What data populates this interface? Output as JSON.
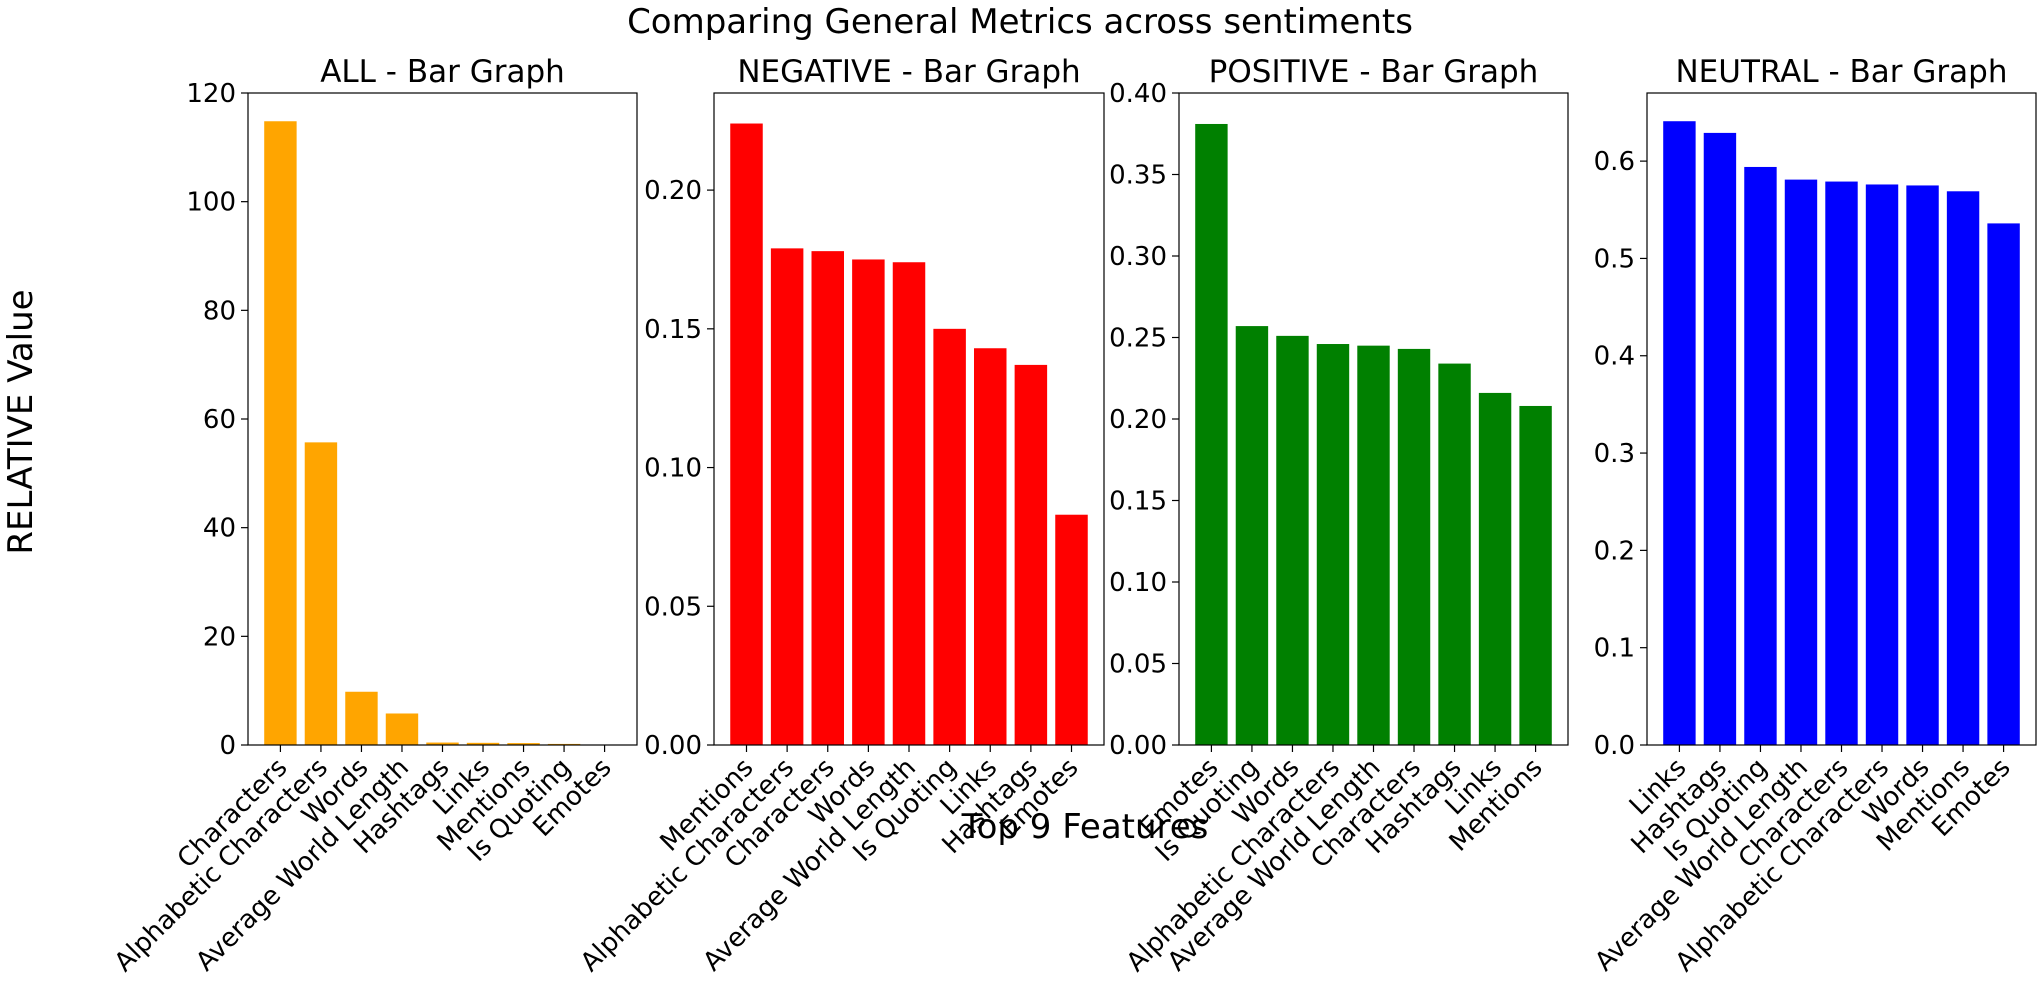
{
  "figure": {
    "title": "Comparing General Metrics across sentiments",
    "ylabel": "RELATIVE Value",
    "xlabel": "Top 9 Features"
  },
  "chart_data": [
    {
      "type": "bar",
      "title": "ALL - Bar Graph",
      "color": "#ffa500",
      "ylim": [
        0,
        120
      ],
      "yticks": [
        0,
        20,
        40,
        60,
        80,
        100,
        120
      ],
      "ytick_labels": [
        "0",
        "20",
        "40",
        "60",
        "80",
        "100",
        "120"
      ],
      "grid": false,
      "categories": [
        "Characters",
        "Alphabetic Characters",
        "Words",
        "Average World Length",
        "Hashtags",
        "Links",
        "Mentions",
        "Is Quoting",
        "Emotes"
      ],
      "values": [
        114.8,
        55.7,
        9.8,
        5.8,
        0.45,
        0.4,
        0.35,
        0.2,
        0.05
      ]
    },
    {
      "type": "bar",
      "title": "NEGATIVE - Bar Graph",
      "color": "#ff0000",
      "ylim": [
        0,
        0.235
      ],
      "yticks": [
        0,
        0.05,
        0.1,
        0.15,
        0.2
      ],
      "ytick_labels": [
        "0.00",
        "0.05",
        "0.10",
        "0.15",
        "0.20"
      ],
      "grid": false,
      "categories": [
        "Mentions",
        "Alphabetic Characters",
        "Characters",
        "Words",
        "Average World Length",
        "Is Quoting",
        "Links",
        "Hashtags",
        "Emotes"
      ],
      "values": [
        0.224,
        0.179,
        0.178,
        0.175,
        0.174,
        0.15,
        0.143,
        0.137,
        0.083
      ]
    },
    {
      "type": "bar",
      "title": "POSITIVE - Bar Graph",
      "color": "#008000",
      "ylim": [
        0,
        0.4
      ],
      "yticks": [
        0,
        0.05,
        0.1,
        0.15,
        0.2,
        0.25,
        0.3,
        0.35,
        0.4
      ],
      "ytick_labels": [
        "0.00",
        "0.05",
        "0.10",
        "0.15",
        "0.20",
        "0.25",
        "0.30",
        "0.35",
        "0.40"
      ],
      "grid": false,
      "categories": [
        "Emotes",
        "Is Quoting",
        "Words",
        "Alphabetic Characters",
        "Average World Length",
        "Characters",
        "Hashtags",
        "Links",
        "Mentions"
      ],
      "values": [
        0.381,
        0.257,
        0.251,
        0.246,
        0.245,
        0.243,
        0.234,
        0.216,
        0.208
      ]
    },
    {
      "type": "bar",
      "title": "NEUTRAL - Bar Graph",
      "color": "#0000ff",
      "ylim": [
        0,
        0.67
      ],
      "yticks": [
        0,
        0.1,
        0.2,
        0.3,
        0.4,
        0.5,
        0.6
      ],
      "ytick_labels": [
        "0.0",
        "0.1",
        "0.2",
        "0.3",
        "0.4",
        "0.5",
        "0.6"
      ],
      "grid": false,
      "categories": [
        "Links",
        "Hashtags",
        "Is Quoting",
        "Average World Length",
        "Characters",
        "Alphabetic Characters",
        "Words",
        "Mentions",
        "Emotes"
      ],
      "values": [
        0.641,
        0.629,
        0.594,
        0.581,
        0.579,
        0.576,
        0.575,
        0.569,
        0.536
      ]
    }
  ]
}
